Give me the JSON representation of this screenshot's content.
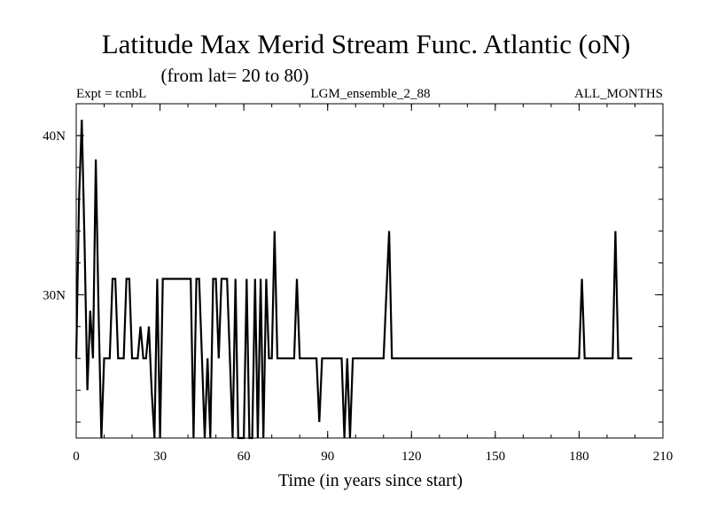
{
  "chart_data": {
    "type": "line",
    "title": "Latitude Max Merid Stream Func. Atlantic (oN)",
    "subtitle": "(from lat= 20 to 80)",
    "left_note": "Expt = tcnbL",
    "center_note": "LGM_ensemble_2_88",
    "right_note": "ALL_MONTHS",
    "xlabel": "Time (in years since start)",
    "ylabel": "",
    "xlim": [
      0,
      210
    ],
    "ylim": [
      21,
      42
    ],
    "x_ticks": [
      0,
      30,
      60,
      90,
      120,
      150,
      180,
      210
    ],
    "x_tick_labels": [
      "0",
      "30",
      "60",
      "90",
      "120",
      "150",
      "180",
      "210"
    ],
    "y_ticks": [
      30,
      40
    ],
    "y_tick_labels": [
      "30N",
      "40N"
    ],
    "y_minor_ticks": [
      22,
      24,
      26,
      28,
      30,
      32,
      34,
      36,
      38,
      40
    ],
    "x_minor_step": 10,
    "series": [
      {
        "color": "#000000",
        "x": [
          0,
          1,
          2,
          3,
          4,
          5,
          6,
          7,
          8,
          9,
          10,
          11,
          12,
          13,
          14,
          15,
          16,
          17,
          18,
          19,
          20,
          21,
          22,
          23,
          24,
          25,
          26,
          27,
          28,
          29,
          30,
          31,
          32,
          33,
          34,
          35,
          36,
          37,
          38,
          39,
          40,
          41,
          42,
          43,
          44,
          45,
          46,
          47,
          48,
          49,
          50,
          51,
          52,
          53,
          54,
          55,
          56,
          57,
          58,
          59,
          60,
          61,
          62,
          63,
          64,
          65,
          66,
          67,
          68,
          69,
          70,
          71,
          72,
          73,
          74,
          75,
          76,
          77,
          78,
          79,
          80,
          81,
          82,
          83,
          84,
          85,
          86,
          87,
          88,
          89,
          90,
          91,
          92,
          93,
          94,
          95,
          96,
          97,
          98,
          99,
          100,
          101,
          102,
          103,
          104,
          105,
          106,
          107,
          108,
          109,
          110,
          111,
          112,
          113,
          114,
          115,
          116,
          180,
          181,
          182,
          183,
          192,
          193,
          194,
          199
        ],
        "y": [
          26,
          36,
          41,
          33,
          24,
          29,
          26,
          38.5,
          29,
          21,
          26,
          26,
          26,
          31,
          31,
          26,
          26,
          26,
          31,
          31,
          26,
          26,
          26,
          28,
          26,
          26,
          28,
          24,
          21,
          31,
          21,
          31,
          31,
          31,
          31,
          31,
          31,
          31,
          31,
          31,
          31,
          31,
          21,
          31,
          31,
          26,
          21,
          26,
          21,
          31,
          31,
          26,
          31,
          31,
          31,
          26,
          21,
          31,
          21,
          21,
          21,
          31,
          21,
          21,
          31,
          21,
          31,
          21,
          31,
          26,
          26,
          34,
          26,
          26,
          26,
          26,
          26,
          26,
          26,
          31,
          26,
          26,
          26,
          26,
          26,
          26,
          26,
          22,
          26,
          26,
          26,
          26,
          26,
          26,
          26,
          26,
          21,
          26,
          21,
          26,
          26,
          26,
          26,
          26,
          26,
          26,
          26,
          26,
          26,
          26,
          26,
          30,
          34,
          26,
          26,
          26,
          26,
          26,
          31,
          26,
          26,
          26,
          34,
          26,
          26
        ]
      }
    ]
  }
}
